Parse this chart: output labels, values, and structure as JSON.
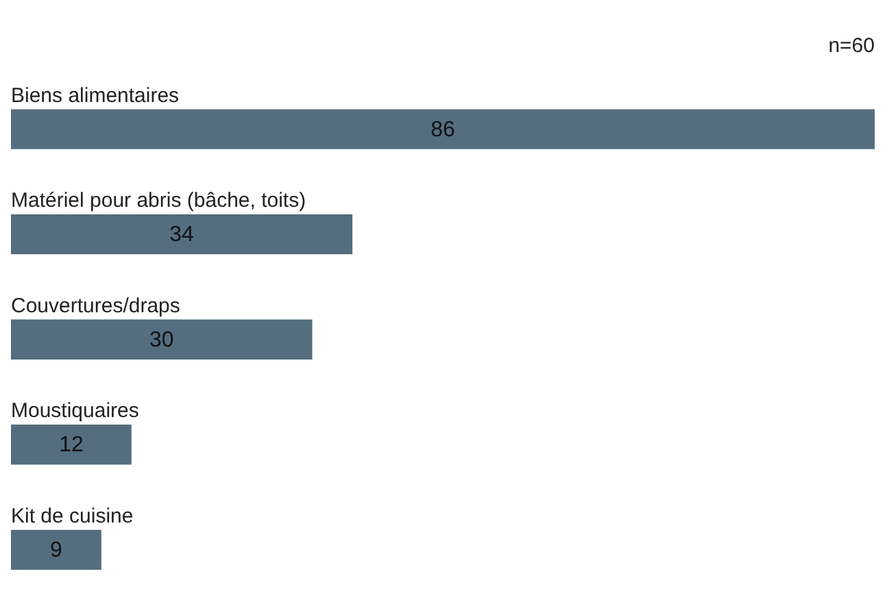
{
  "chart_data": {
    "type": "bar",
    "orientation": "horizontal",
    "categories": [
      "Biens alimentaires",
      "Matériel pour abris (bâche, toits)",
      "Couvertures/draps",
      "Moustiquaires",
      "Kit de cuisine"
    ],
    "values": [
      86,
      34,
      30,
      12,
      9
    ],
    "color": "#546e7f",
    "data_labels": true,
    "annotations": [
      "n=60"
    ]
  }
}
